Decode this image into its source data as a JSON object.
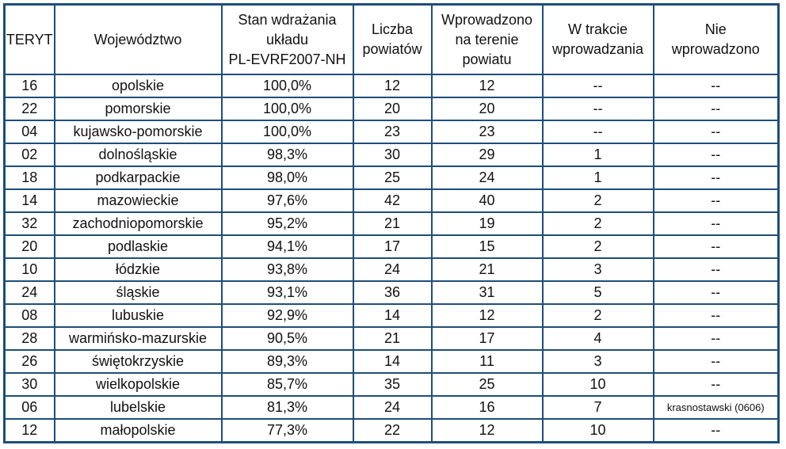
{
  "table": {
    "headers": [
      "TERYT",
      "Województwo",
      "Stan wdrażania układu PL-EVRF2007-NH",
      "Liczba powiatów",
      "Wprowadzono na terenie powiatu",
      "W trakcie wprowadzania",
      "Nie wprowadzono"
    ],
    "header_lines": [
      [
        "TERYT"
      ],
      [
        "Województwo"
      ],
      [
        "Stan wdrażania",
        "układu",
        "PL-EVRF2007-NH"
      ],
      [
        "Liczba",
        "powiatów"
      ],
      [
        "Wprowadzono",
        "na terenie",
        "powiatu"
      ],
      [
        "W trakcie",
        "wprowadzania"
      ],
      [
        "Nie",
        "wprowadzono"
      ]
    ],
    "rows": [
      [
        "16",
        "opolskie",
        "100,0%",
        "12",
        "12",
        "--",
        "--"
      ],
      [
        "22",
        "pomorskie",
        "100,0%",
        "20",
        "20",
        "--",
        "--"
      ],
      [
        "04",
        "kujawsko-pomorskie",
        "100,0%",
        "23",
        "23",
        "--",
        "--"
      ],
      [
        "02",
        "dolnośląskie",
        "98,3%",
        "30",
        "29",
        "1",
        "--"
      ],
      [
        "18",
        "podkarpackie",
        "98,0%",
        "25",
        "24",
        "1",
        "--"
      ],
      [
        "14",
        "mazowieckie",
        "97,6%",
        "42",
        "40",
        "2",
        "--"
      ],
      [
        "32",
        "zachodniopomorskie",
        "95,2%",
        "21",
        "19",
        "2",
        "--"
      ],
      [
        "20",
        "podlaskie",
        "94,1%",
        "17",
        "15",
        "2",
        "--"
      ],
      [
        "10",
        "łódzkie",
        "93,8%",
        "24",
        "21",
        "3",
        "--"
      ],
      [
        "24",
        "śląskie",
        "93,1%",
        "36",
        "31",
        "5",
        "--"
      ],
      [
        "08",
        "lubuskie",
        "92,9%",
        "14",
        "12",
        "2",
        "--"
      ],
      [
        "28",
        "warmińsko-mazurskie",
        "90,5%",
        "21",
        "17",
        "4",
        "--"
      ],
      [
        "26",
        "świętokrzyskie",
        "89,3%",
        "14",
        "11",
        "3",
        "--"
      ],
      [
        "30",
        "wielkopolskie",
        "85,7%",
        "35",
        "25",
        "10",
        "--"
      ],
      [
        "06",
        "lubelskie",
        "81,3%",
        "24",
        "16",
        "7",
        "krasnostawski (0606)"
      ],
      [
        "12",
        "małopolskie",
        "77,3%",
        "22",
        "12",
        "10",
        "--"
      ]
    ]
  },
  "colors": {
    "border": "#1f4e79",
    "text": "#111111"
  }
}
